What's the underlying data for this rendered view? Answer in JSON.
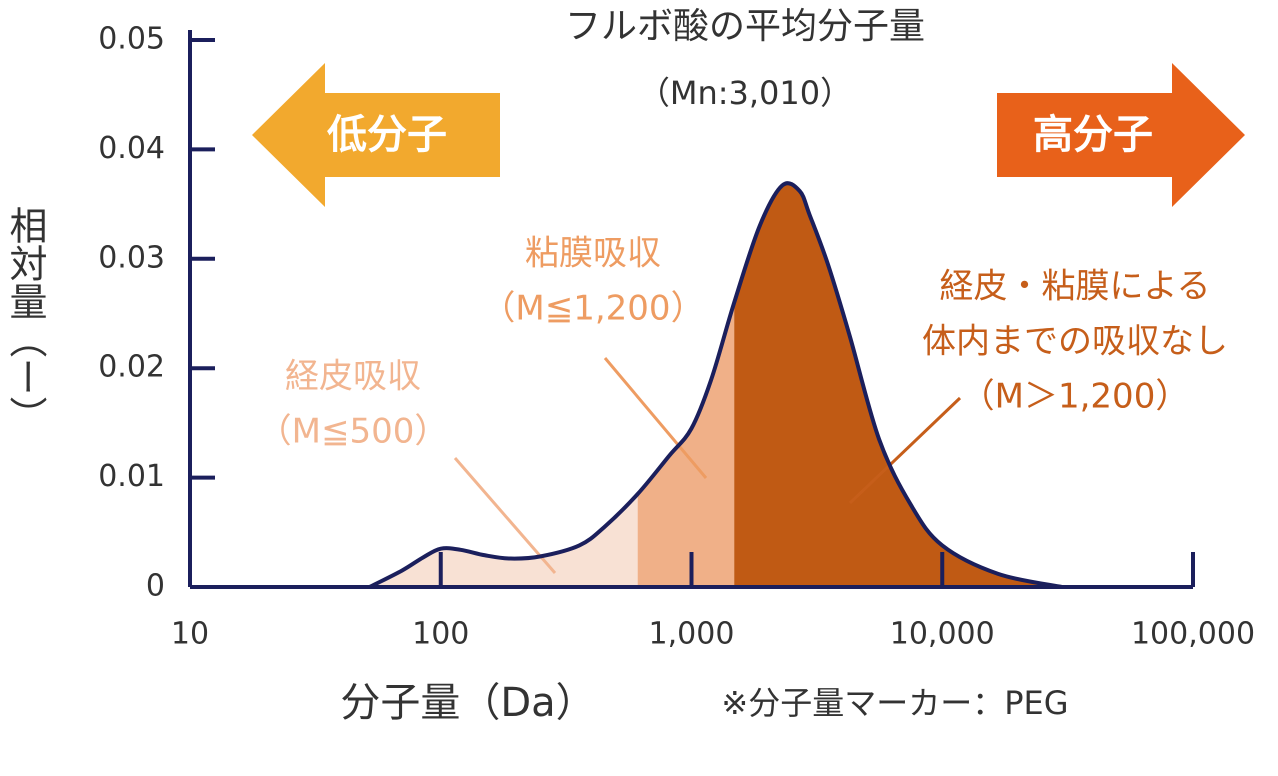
{
  "chart_data": {
    "type": "area",
    "title": "フルボ酸の平均分子量",
    "subtitle": "（Mn:3,010）",
    "x_label": "分子量（Da）",
    "x_note": "※分子量マーカー：PEG",
    "y_label": "相対量（ー）",
    "x": [
      52,
      70,
      85,
      100,
      120,
      150,
      190,
      250,
      357,
      450,
      610,
      815,
      1000,
      1200,
      1480,
      1870,
      2300,
      2700,
      2960,
      3500,
      4270,
      5600,
      7500,
      10000,
      16700,
      30000
    ],
    "values": [
      0,
      0.0015,
      0.0027,
      0.0035,
      0.0034,
      0.0029,
      0.0026,
      0.0028,
      0.0038,
      0.0055,
      0.0085,
      0.012,
      0.0145,
      0.019,
      0.026,
      0.033,
      0.0367,
      0.0362,
      0.034,
      0.0295,
      0.023,
      0.0135,
      0.0075,
      0.0038,
      0.0012,
      0
    ],
    "line_color": "#1b1f5c",
    "regions": [
      {
        "from": 10,
        "to": 610,
        "color": "#f8e1d4"
      },
      {
        "from": 610,
        "to": 1480,
        "color": "#f0b088"
      },
      {
        "from": 1480,
        "to": 100000,
        "color": "#c05a14"
      }
    ],
    "annotations": [
      {
        "lines": [
          "経皮吸収",
          "（M≦500）"
        ],
        "color": "#f2b590"
      },
      {
        "lines": [
          "粘膜吸収",
          "（M≦1,200）"
        ],
        "color": "#ee9c62"
      },
      {
        "lines": [
          "経皮・粘膜による",
          "体内までの吸収なし",
          "（M＞1,200）"
        ],
        "color": "#c65e1a"
      }
    ],
    "arrows": [
      {
        "label": "低分子",
        "color": "#f2a92e"
      },
      {
        "label": "高分子",
        "color": "#e8611a"
      }
    ],
    "xlog": true,
    "xlim": [
      10,
      100000
    ],
    "xticks": [
      10,
      100,
      {
        "value": 1000,
        "label": "1,000"
      },
      {
        "value": 10000,
        "label": "10,000"
      },
      {
        "value": 100000,
        "label": "100,000"
      }
    ],
    "ylim": [
      0,
      0.05
    ],
    "yticks": [
      0,
      0.01,
      0.02,
      0.03,
      0.04,
      0.05
    ]
  }
}
